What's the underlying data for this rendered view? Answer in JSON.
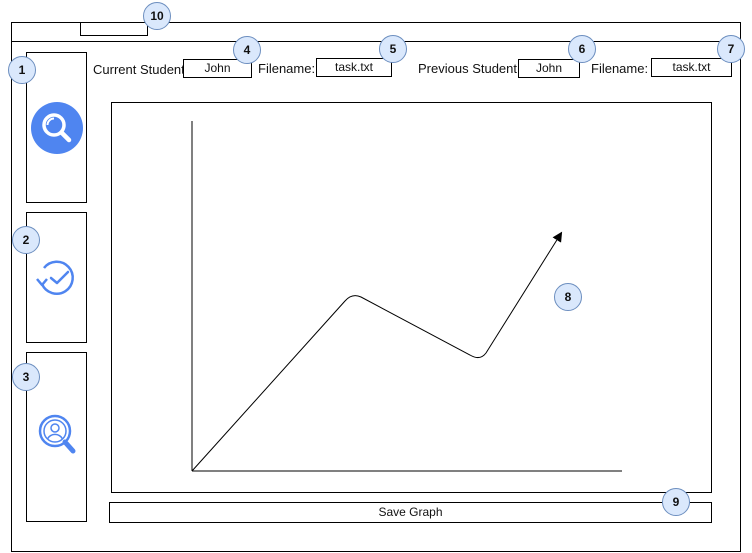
{
  "header": {
    "current_student_label": "Current Student:",
    "current_student_value": "John",
    "current_filename_label": "Filename:",
    "current_filename_value": "task.txt",
    "previous_student_label": "Previous Student:",
    "previous_student_value": "John",
    "previous_filename_label": "Filename:",
    "previous_filename_value": "task.txt"
  },
  "sidebar": {
    "buttons": [
      {
        "icon": "search-icon",
        "color": "#4f85f0"
      },
      {
        "icon": "history-check-icon",
        "color": "#4f85f0"
      },
      {
        "icon": "user-search-icon",
        "color": "#4f85f0"
      }
    ]
  },
  "footer": {
    "save_label": "Save Graph"
  },
  "markers": {
    "m1": "1",
    "m2": "2",
    "m3": "3",
    "m4": "4",
    "m5": "5",
    "m6": "6",
    "m7": "7",
    "m8": "8",
    "m9": "9",
    "m10": "10"
  }
}
